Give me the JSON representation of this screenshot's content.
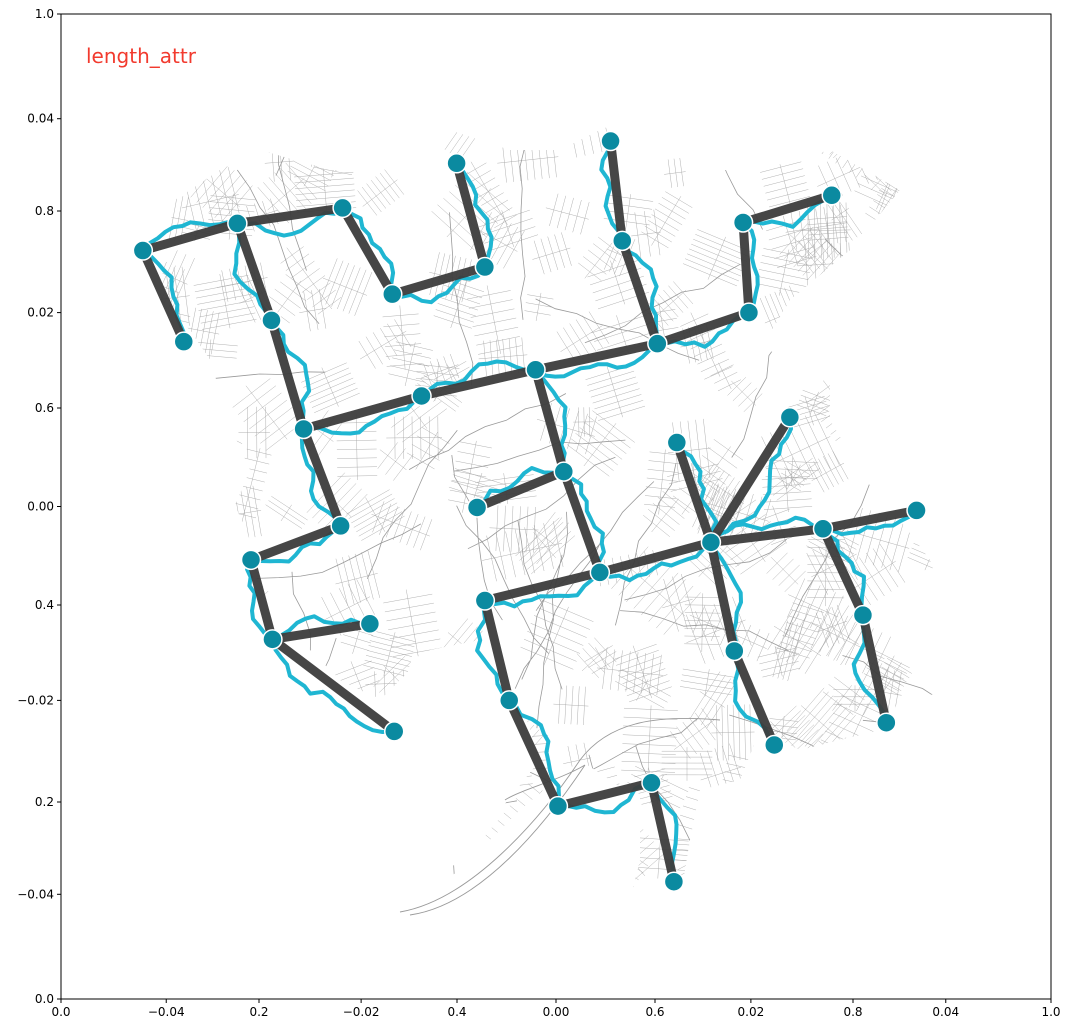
{
  "chart_data": {
    "type": "network-map",
    "title": "length_attr",
    "colors": {
      "title": "#f23a2e",
      "edge": "#3d3d3d",
      "route": "#1fb6d2",
      "node": "#0b8aa0",
      "node_edge": "#ffffff",
      "street": "#a8a8a8",
      "axes": "#000000"
    },
    "axes": {
      "outer": {
        "xlim": [
          0,
          1
        ],
        "ylim": [
          0,
          1
        ],
        "xticks": [
          "0.0",
          "0.2",
          "0.4",
          "0.6",
          "0.8",
          "1.0"
        ],
        "yticks": [
          "0.0",
          "0.2",
          "0.4",
          "0.6",
          "0.8",
          "1.0"
        ]
      },
      "inner": {
        "xlim": [
          -0.0508,
          0.0508
        ],
        "ylim": [
          -0.0508,
          0.0508
        ],
        "xticks": [
          "−0.04",
          "−0.02",
          "0.00",
          "0.02",
          "0.04"
        ],
        "yticks": [
          "−0.04",
          "−0.02",
          "0.00",
          "0.02",
          "0.04"
        ]
      }
    },
    "nodes": [
      {
        "id": "n1",
        "x": -0.0424,
        "y": 0.0264
      },
      {
        "id": "n2",
        "x": -0.0327,
        "y": 0.0292
      },
      {
        "id": "n3",
        "x": -0.0219,
        "y": 0.0308
      },
      {
        "id": "n4",
        "x": -0.0382,
        "y": 0.017
      },
      {
        "id": "n5",
        "x": -0.0292,
        "y": 0.0192
      },
      {
        "id": "n6",
        "x": -0.0168,
        "y": 0.0219
      },
      {
        "id": "n7",
        "x": -0.0102,
        "y": 0.0354
      },
      {
        "id": "n8",
        "x": -0.0073,
        "y": 0.0247
      },
      {
        "id": "n9",
        "x": 0.0056,
        "y": 0.0377
      },
      {
        "id": "n10",
        "x": 0.0068,
        "y": 0.0274
      },
      {
        "id": "n11",
        "x": 0.0104,
        "y": 0.0168
      },
      {
        "id": "n12",
        "x": 0.0192,
        "y": 0.0293
      },
      {
        "id": "n13",
        "x": 0.0198,
        "y": 0.02
      },
      {
        "id": "n14",
        "x": 0.0283,
        "y": 0.0321
      },
      {
        "id": "n15",
        "x": -0.0021,
        "y": 0.0141
      },
      {
        "id": "n16",
        "x": -0.0138,
        "y": 0.0114
      },
      {
        "id": "n17",
        "x": -0.0259,
        "y": 0.008
      },
      {
        "id": "n18",
        "x": -0.0221,
        "y": -0.002
      },
      {
        "id": "n19",
        "x": -0.0313,
        "y": -0.0055
      },
      {
        "id": "n20",
        "x": -0.0291,
        "y": -0.0137
      },
      {
        "id": "n21",
        "x": -0.0191,
        "y": -0.0121
      },
      {
        "id": "n22",
        "x": -0.0166,
        "y": -0.0232
      },
      {
        "id": "n23",
        "x": 0.0008,
        "y": 0.0036
      },
      {
        "id": "n24",
        "x": -0.0081,
        "y": -0.0001
      },
      {
        "id": "n25",
        "x": 0.0045,
        "y": -0.0068
      },
      {
        "id": "n26",
        "x": -0.0073,
        "y": -0.0097
      },
      {
        "id": "n27",
        "x": -0.0048,
        "y": -0.02
      },
      {
        "id": "n28",
        "x": 0.0002,
        "y": -0.0309
      },
      {
        "id": "n29",
        "x": 0.0098,
        "y": -0.0285
      },
      {
        "id": "n30",
        "x": 0.0121,
        "y": -0.0387
      },
      {
        "id": "n31",
        "x": 0.0124,
        "y": 0.0066
      },
      {
        "id": "n32",
        "x": 0.0159,
        "y": -0.0037
      },
      {
        "id": "n33",
        "x": 0.024,
        "y": 0.0092
      },
      {
        "id": "n34",
        "x": 0.0274,
        "y": -0.0023
      },
      {
        "id": "n35",
        "x": 0.037,
        "y": -0.0004
      },
      {
        "id": "n36",
        "x": 0.0315,
        "y": -0.0112
      },
      {
        "id": "n37",
        "x": 0.0339,
        "y": -0.0223
      },
      {
        "id": "n38",
        "x": 0.0183,
        "y": -0.0149
      },
      {
        "id": "n39",
        "x": 0.0224,
        "y": -0.0246
      }
    ],
    "edges": [
      [
        "n1",
        "n2"
      ],
      [
        "n2",
        "n3"
      ],
      [
        "n1",
        "n4"
      ],
      [
        "n2",
        "n5"
      ],
      [
        "n3",
        "n6"
      ],
      [
        "n6",
        "n8"
      ],
      [
        "n7",
        "n8"
      ],
      [
        "n9",
        "n10"
      ],
      [
        "n10",
        "n11"
      ],
      [
        "n11",
        "n13"
      ],
      [
        "n12",
        "n13"
      ],
      [
        "n12",
        "n14"
      ],
      [
        "n5",
        "n17"
      ],
      [
        "n17",
        "n16"
      ],
      [
        "n16",
        "n15"
      ],
      [
        "n15",
        "n11"
      ],
      [
        "n15",
        "n23"
      ],
      [
        "n23",
        "n24"
      ],
      [
        "n23",
        "n25"
      ],
      [
        "n17",
        "n18"
      ],
      [
        "n18",
        "n19"
      ],
      [
        "n19",
        "n20"
      ],
      [
        "n20",
        "n21"
      ],
      [
        "n20",
        "n22"
      ],
      [
        "n25",
        "n26"
      ],
      [
        "n26",
        "n27"
      ],
      [
        "n27",
        "n28"
      ],
      [
        "n28",
        "n29"
      ],
      [
        "n29",
        "n30"
      ],
      [
        "n25",
        "n32"
      ],
      [
        "n31",
        "n32"
      ],
      [
        "n32",
        "n33"
      ],
      [
        "n32",
        "n34"
      ],
      [
        "n34",
        "n35"
      ],
      [
        "n34",
        "n36"
      ],
      [
        "n36",
        "n37"
      ],
      [
        "n32",
        "n38"
      ],
      [
        "n38",
        "n39"
      ]
    ]
  }
}
